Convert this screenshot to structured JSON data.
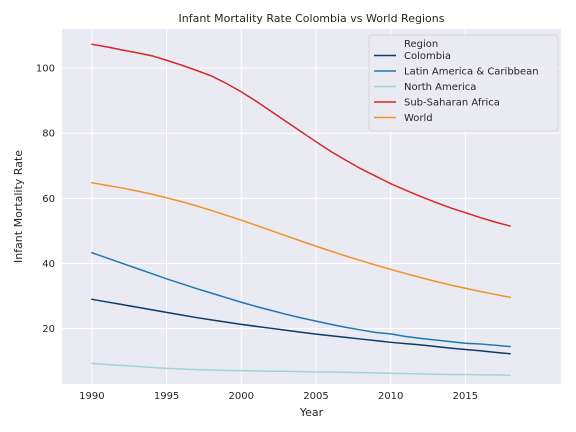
{
  "chart_data": {
    "type": "line",
    "title": "Infant Mortality Rate Colombia vs World Regions",
    "xlabel": "Year",
    "ylabel": "Infant Mortality Rate",
    "xlim": [
      1988.0,
      2021.4
    ],
    "ylim": [
      3.0,
      112.0
    ],
    "xticks": [
      1990,
      1995,
      2000,
      2005,
      2010,
      2015
    ],
    "yticks": [
      20,
      40,
      60,
      80,
      100
    ],
    "grid": true,
    "legend": {
      "title": "Region",
      "position": "top-right"
    },
    "x": [
      1990,
      1991,
      1992,
      1993,
      1994,
      1995,
      1996,
      1997,
      1998,
      1999,
      2000,
      2001,
      2002,
      2003,
      2004,
      2005,
      2006,
      2007,
      2008,
      2009,
      2010,
      2011,
      2012,
      2013,
      2014,
      2015,
      2016,
      2017,
      2018
    ],
    "series": [
      {
        "name": "Colombia",
        "color": "#0d3b66",
        "values": [
          29.0,
          28.2,
          27.4,
          26.6,
          25.8,
          25.0,
          24.2,
          23.4,
          22.7,
          22.0,
          21.3,
          20.7,
          20.1,
          19.5,
          18.9,
          18.3,
          17.8,
          17.3,
          16.8,
          16.3,
          15.8,
          15.4,
          15.0,
          14.5,
          14.0,
          13.6,
          13.2,
          12.7,
          12.3
        ]
      },
      {
        "name": "Latin America & Caribbean",
        "color": "#1f77b4",
        "values": [
          43.3,
          41.7,
          40.1,
          38.5,
          36.9,
          35.3,
          33.8,
          32.3,
          30.9,
          29.5,
          28.1,
          26.8,
          25.6,
          24.4,
          23.3,
          22.3,
          21.3,
          20.4,
          19.6,
          18.8,
          18.4,
          17.6,
          17.0,
          16.5,
          16.0,
          15.5,
          15.3,
          14.9,
          14.5
        ]
      },
      {
        "name": "North America",
        "color": "#9fd3d6",
        "values": [
          9.3,
          9.0,
          8.7,
          8.4,
          8.1,
          7.8,
          7.6,
          7.4,
          7.3,
          7.2,
          7.1,
          7.0,
          6.9,
          6.9,
          6.8,
          6.7,
          6.7,
          6.6,
          6.5,
          6.4,
          6.3,
          6.2,
          6.1,
          6.0,
          5.9,
          5.9,
          5.8,
          5.8,
          5.7
        ]
      },
      {
        "name": "Sub-Saharan Africa",
        "color": "#d62728",
        "values": [
          107.3,
          106.5,
          105.6,
          104.7,
          103.8,
          102.4,
          100.9,
          99.3,
          97.6,
          95.3,
          92.7,
          89.8,
          86.7,
          83.6,
          80.5,
          77.4,
          74.4,
          71.7,
          69.1,
          66.8,
          64.5,
          62.5,
          60.6,
          58.8,
          57.1,
          55.6,
          54.1,
          52.7,
          51.5
        ]
      },
      {
        "name": "World",
        "color": "#f0922b",
        "values": [
          64.8,
          64.0,
          63.2,
          62.3,
          61.3,
          60.2,
          59.0,
          57.7,
          56.3,
          54.8,
          53.3,
          51.7,
          50.1,
          48.5,
          46.9,
          45.3,
          43.8,
          42.3,
          40.9,
          39.5,
          38.2,
          36.9,
          35.7,
          34.5,
          33.4,
          32.4,
          31.4,
          30.5,
          29.6
        ]
      }
    ]
  }
}
